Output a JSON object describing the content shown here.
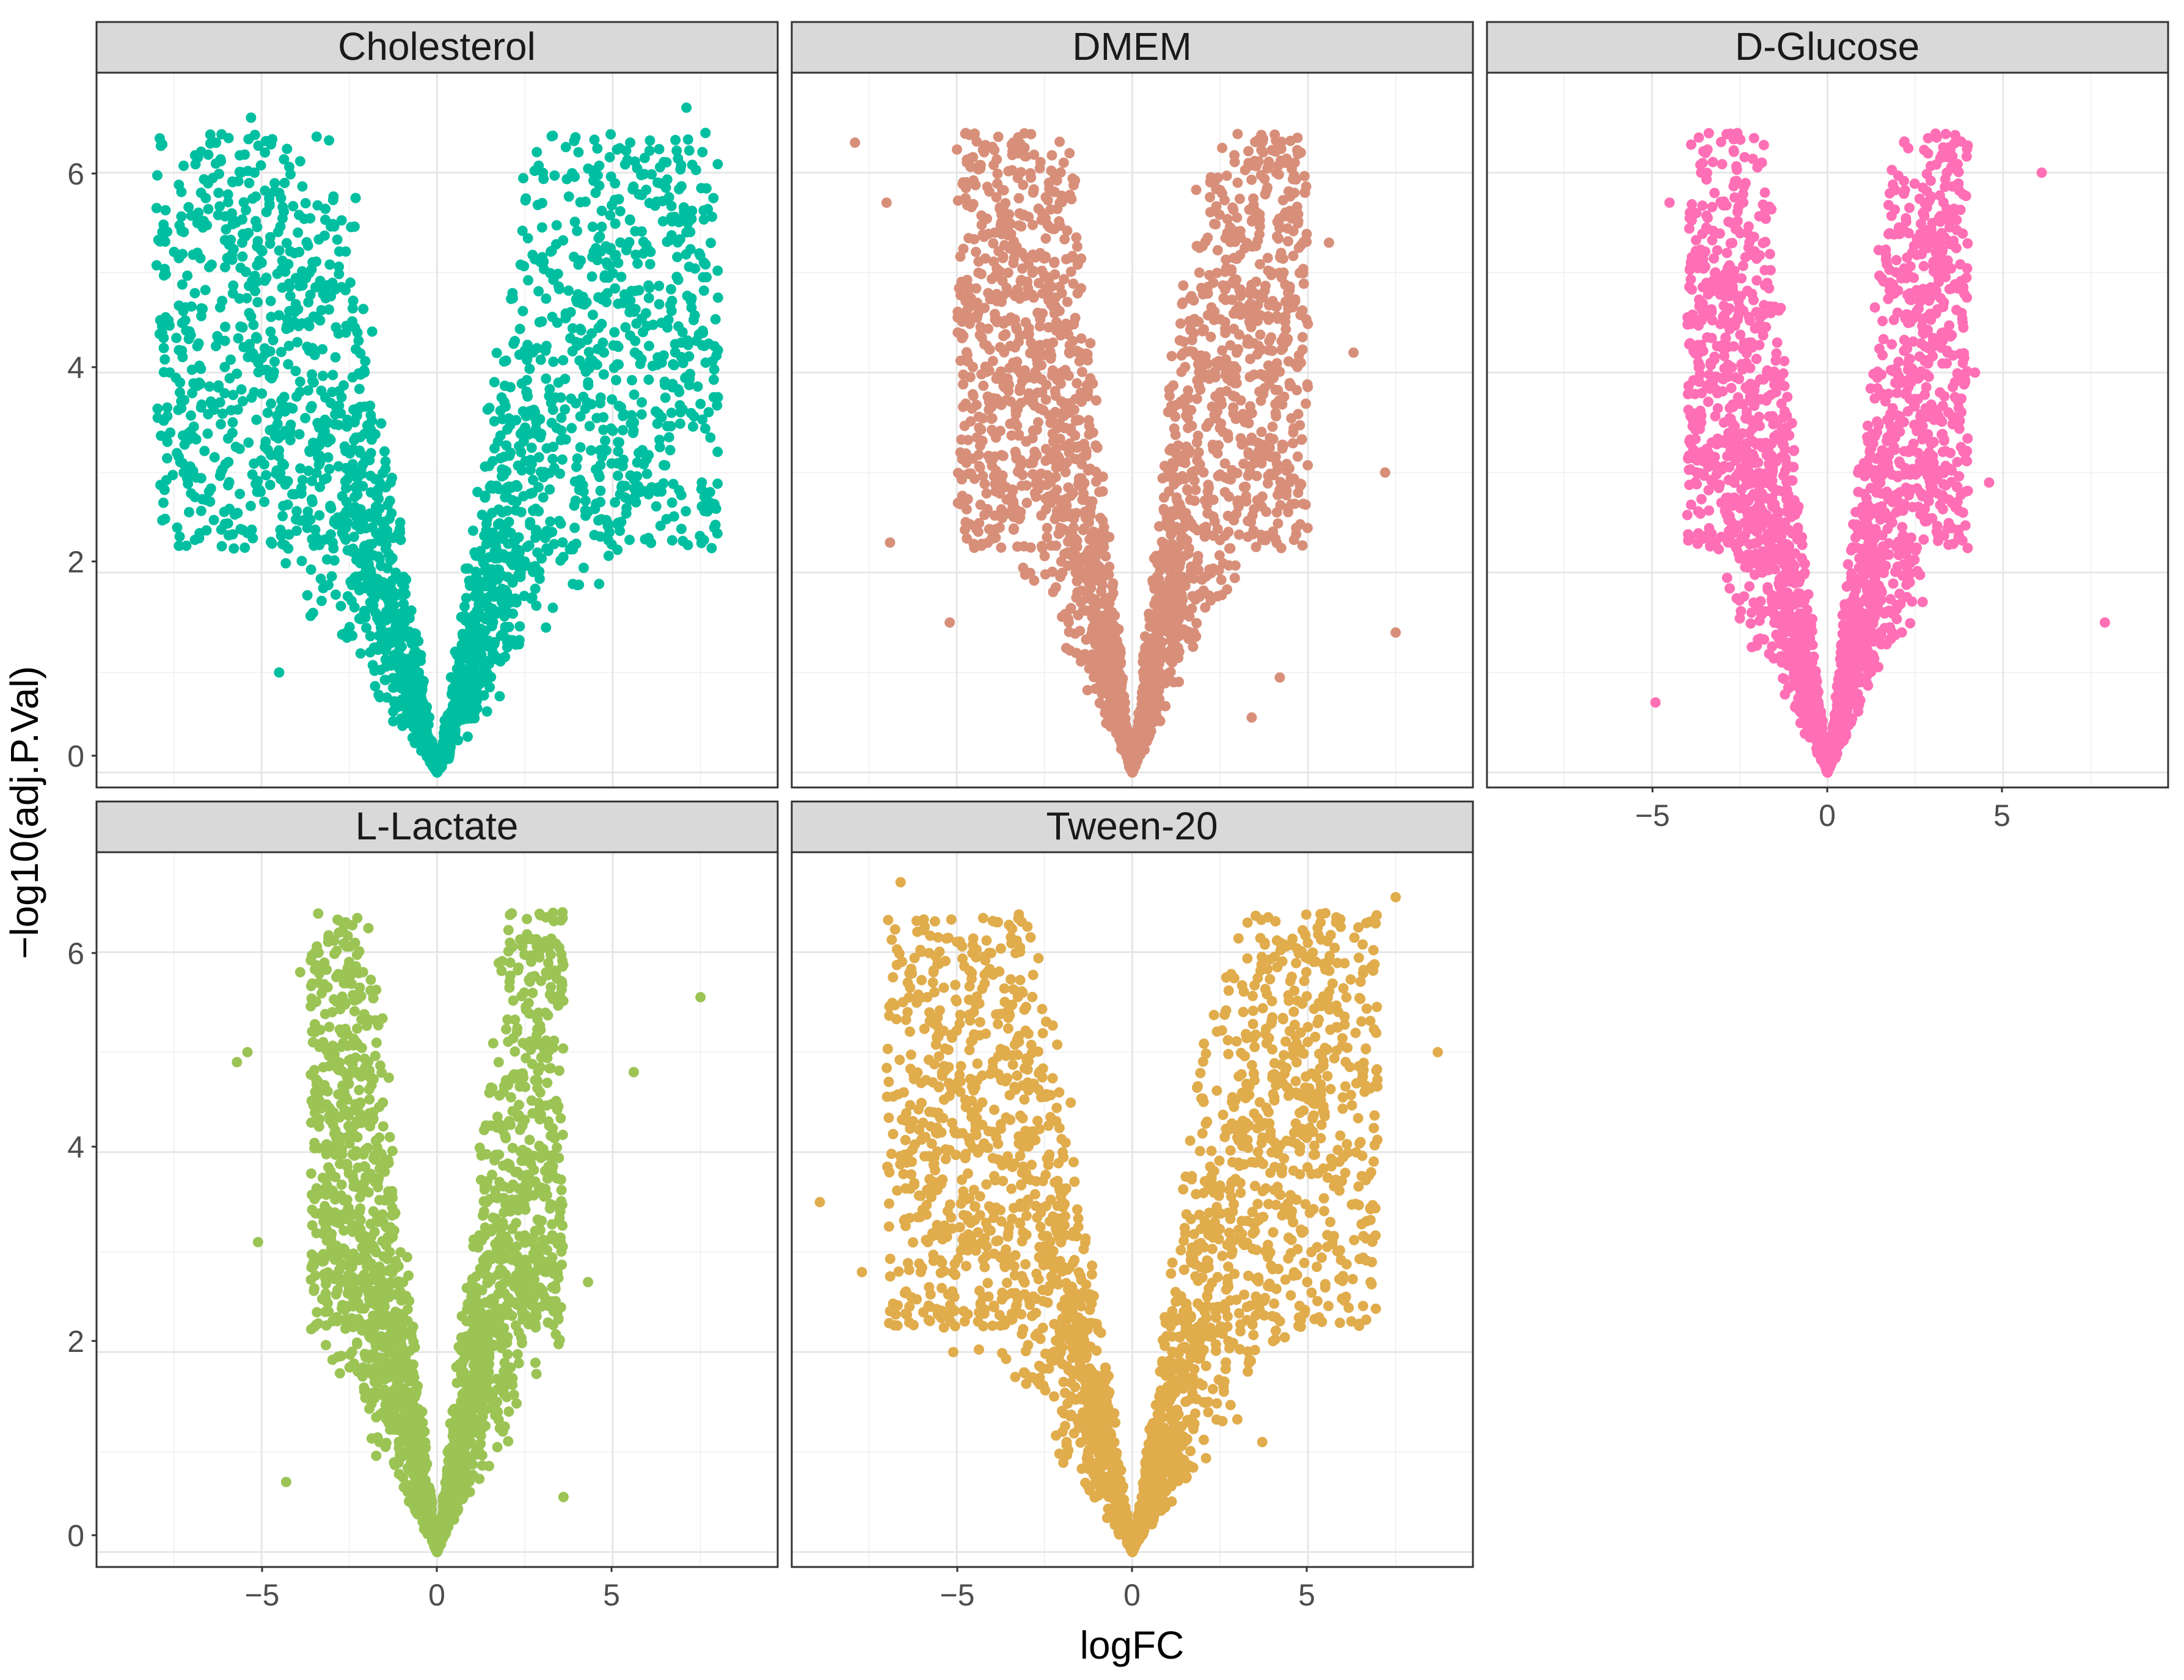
{
  "figure": {
    "xlabel": "logFC",
    "ylabel": "−log10(adj.P.Val)"
  },
  "chart_data": [
    {
      "type": "scatter",
      "title": "Cholesterol",
      "color": "#00BFA0",
      "xlim": [
        -9.7,
        9.7
      ],
      "ylim": [
        -0.15,
        7.0
      ],
      "xticks": [
        -5,
        0,
        5
      ],
      "yticks": [
        0,
        2,
        4,
        6
      ],
      "xticklabels": [
        "−5",
        "0",
        "5"
      ],
      "yticklabels": [
        "0",
        "2",
        "4",
        "6"
      ],
      "spread": [
        8,
        6.5
      ],
      "labeled_points": [
        {
          "x": -7.6,
          "y": 3.4
        },
        {
          "x": -6.8,
          "y": 5.6
        },
        {
          "x": -5.3,
          "y": 6.55
        },
        {
          "x": -5.2,
          "y": 6.0
        },
        {
          "x": -4.5,
          "y": 1.0
        },
        {
          "x": 7.1,
          "y": 6.65
        },
        {
          "x": 7.6,
          "y": 5.1
        },
        {
          "x": 8.0,
          "y": 4.75
        },
        {
          "x": 5.5,
          "y": 6.3
        },
        {
          "x": 5.7,
          "y": 3.1
        },
        {
          "x": 3.1,
          "y": 1.45
        },
        {
          "x": 6.4,
          "y": 4.1
        }
      ],
      "notable_points": []
    },
    {
      "type": "scatter",
      "title": "DMEM",
      "color": "#D88F7A",
      "xlim": [
        -9.7,
        9.7
      ],
      "ylim": [
        -0.15,
        7.0
      ],
      "xticks": [
        -5,
        0,
        5
      ],
      "yticks": [
        0,
        2,
        4,
        6
      ],
      "xticklabels": [
        "−5",
        "0",
        "5"
      ],
      "yticklabels": [
        "0",
        "2",
        "4",
        "6"
      ],
      "spread": [
        5,
        6
      ],
      "labeled_points": [
        {
          "x": -7.9,
          "y": 6.3
        },
        {
          "x": -7.0,
          "y": 5.7
        },
        {
          "x": -6.9,
          "y": 2.3
        },
        {
          "x": -5.2,
          "y": 1.5
        },
        {
          "x": 4.1,
          "y": 6.0
        },
        {
          "x": 5.6,
          "y": 5.3
        },
        {
          "x": 6.3,
          "y": 4.2
        },
        {
          "x": 7.2,
          "y": 3.0
        },
        {
          "x": 7.5,
          "y": 1.4
        },
        {
          "x": 3.4,
          "y": 0.55
        },
        {
          "x": 4.2,
          "y": 0.95
        }
      ],
      "notable_points": []
    },
    {
      "type": "scatter",
      "title": "D-Glucose",
      "color": "#FF6FB5",
      "xlim": [
        -9.7,
        9.7
      ],
      "ylim": [
        -0.15,
        7.0
      ],
      "xticks": [
        -5,
        0,
        5
      ],
      "yticks": [
        0,
        2,
        4,
        6
      ],
      "xticklabels": [
        "−5",
        "0",
        "5"
      ],
      "yticklabels": [
        "0",
        "2",
        "4",
        "6"
      ],
      "spread": [
        4,
        4.7
      ],
      "labeled_points": [
        {
          "x": -3.6,
          "y": 6.0
        },
        {
          "x": 3.4,
          "y": 6.0
        },
        {
          "x": 6.1,
          "y": 6.0
        },
        {
          "x": -4.9,
          "y": 0.7
        },
        {
          "x": 7.9,
          "y": 1.5
        },
        {
          "x": 4.6,
          "y": 2.9
        },
        {
          "x": 4.2,
          "y": 4.0
        },
        {
          "x": -4.5,
          "y": 5.7
        }
      ],
      "notable_points": []
    },
    {
      "type": "scatter",
      "title": "L-Lactate",
      "color": "#9BC455",
      "xlim": [
        -9.7,
        9.7
      ],
      "ylim": [
        -0.15,
        7.0
      ],
      "xticks": [
        -5,
        0,
        5
      ],
      "yticks": [
        0,
        2,
        4,
        6
      ],
      "xticklabels": [
        "−5",
        "0",
        "5"
      ],
      "yticklabels": [
        "0",
        "2",
        "4",
        "6"
      ],
      "spread": [
        3.6,
        4.0
      ],
      "labeled_points": [
        {
          "x": -3.9,
          "y": 5.8
        },
        {
          "x": 7.5,
          "y": 5.55
        },
        {
          "x": -5.7,
          "y": 4.9
        },
        {
          "x": -5.4,
          "y": 5.0
        },
        {
          "x": 5.6,
          "y": 4.8
        },
        {
          "x": -5.1,
          "y": 3.1
        },
        {
          "x": -4.3,
          "y": 0.7
        },
        {
          "x": 4.3,
          "y": 2.7
        },
        {
          "x": 3.6,
          "y": 0.55
        }
      ],
      "notable_points": []
    },
    {
      "type": "scatter",
      "title": "Tween-20",
      "color": "#E0AC4C",
      "xlim": [
        -9.7,
        9.7
      ],
      "ylim": [
        -0.15,
        7.0
      ],
      "xticks": [
        -5,
        0,
        5
      ],
      "yticks": [
        0,
        2,
        4,
        6
      ],
      "xticklabels": [
        "−5",
        "0",
        "5"
      ],
      "yticklabels": [
        "0",
        "2",
        "4",
        "6"
      ],
      "spread": [
        7,
        6
      ],
      "labeled_points": [
        {
          "x": -6.6,
          "y": 6.7
        },
        {
          "x": -8.9,
          "y": 3.5
        },
        {
          "x": -7.7,
          "y": 2.8
        },
        {
          "x": 7.5,
          "y": 6.55
        },
        {
          "x": 8.7,
          "y": 5.0
        },
        {
          "x": 6.5,
          "y": 4.1
        },
        {
          "x": 5.1,
          "y": 3.0
        },
        {
          "x": 3.7,
          "y": 1.1
        },
        {
          "x": -5.1,
          "y": 2.0
        }
      ],
      "notable_points": []
    }
  ]
}
